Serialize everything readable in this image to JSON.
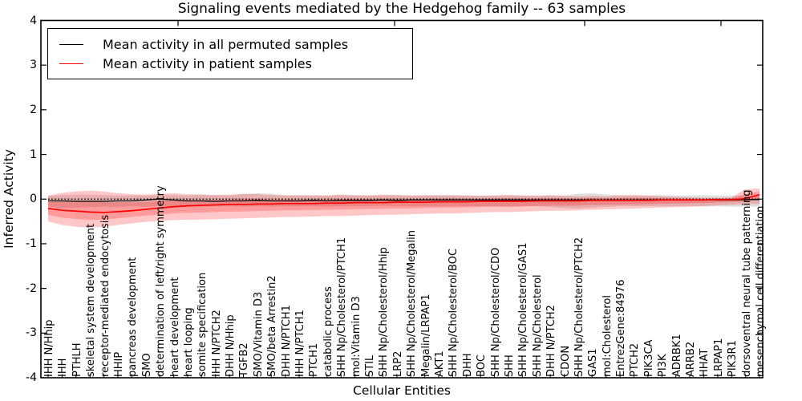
{
  "chart": {
    "title": "Signaling events mediated by the Hedgehog family -- 63 samples",
    "xlabel": "Cellular Entities",
    "ylabel": "Inferred Activity",
    "sample_count": "63 samples"
  },
  "chart_data": {
    "type": "line",
    "title": "Signaling events mediated by the Hedgehog family -- 63 samples",
    "xlabel": "Cellular Entities",
    "ylabel": "Inferred Activity",
    "ylim": [
      -4,
      4
    ],
    "yticks": [
      4,
      3,
      2,
      1,
      0,
      -1,
      -2,
      -3,
      -4
    ],
    "grid": false,
    "legend_position": "upper left",
    "reference_line": {
      "y": 0,
      "style": "dotted",
      "color": "#000000"
    },
    "colors": {
      "permuted_line": "#000000",
      "patient_line": "#ff0000",
      "permuted_band": "rgba(128,128,128,0.25)",
      "patient_band": "rgba(255,0,0,0.22)",
      "frame": "#000000"
    },
    "categories": [
      "IHH N/Hhip",
      "IHH",
      "PTHLH",
      "skeletal system development",
      "receptor-mediated endocytosis",
      "HHIP",
      "pancreas development",
      "SMO",
      "determination of left/right symmetry",
      "heart development",
      "heart looping",
      "somite specification",
      "IHH N/PTCH2",
      "DHH N/Hhip",
      "TGFB2",
      "SMO/Vitamin D3",
      "SMO/beta Arrestin2",
      "DHH N/PTCH1",
      "IHH N/PTCH1",
      "PTCH1",
      "catabolic process",
      "SHH Np/Cholesterol/PTCH1",
      "mol:Vitamin D3",
      "STIL",
      "SHH Np/Cholesterol/Hhip",
      "LRP2",
      "SHH Np/Cholesterol/Megalin",
      "Megalin/LRPAP1",
      "AKT1",
      "SHH Np/Cholesterol/BOC",
      "DHH",
      "BOC",
      "SHH Np/Cholesterol/CDO",
      "SHH",
      "SHH Np/Cholesterol/GAS1",
      "SHH Np/Cholesterol",
      "DHH N/PTCH2",
      "CDON",
      "SHH Np/Cholesterol/PTCH2",
      "GAS1",
      "mol:Cholesterol",
      "EntrezGene:84976",
      "PTCH2",
      "PIK3CA",
      "PI3K",
      "ADRBK1",
      "ARRB2",
      "HHAT",
      "LRPAP1",
      "PIK3R1",
      "dorsoventral neural tube patterning",
      "mesenchymal cell differentiation"
    ],
    "series": [
      {
        "name": "Mean activity in all permuted samples",
        "color": "#000000",
        "values": [
          -0.04,
          -0.04,
          -0.05,
          -0.05,
          -0.05,
          -0.04,
          -0.04,
          -0.02,
          0.0,
          -0.02,
          -0.04,
          -0.04,
          -0.05,
          -0.04,
          -0.04,
          -0.03,
          -0.04,
          -0.04,
          -0.04,
          -0.03,
          -0.04,
          -0.03,
          -0.03,
          -0.03,
          -0.02,
          -0.03,
          -0.02,
          -0.02,
          -0.02,
          -0.02,
          -0.02,
          -0.02,
          -0.02,
          -0.02,
          -0.02,
          -0.02,
          -0.02,
          -0.02,
          -0.02,
          -0.02,
          -0.02,
          -0.02,
          -0.02,
          -0.02,
          -0.02,
          -0.02,
          -0.02,
          -0.02,
          -0.02,
          -0.02,
          -0.01,
          -0.01
        ],
        "band_upper": [
          0.07,
          0.09,
          0.1,
          0.1,
          0.09,
          0.08,
          0.08,
          0.08,
          0.08,
          0.09,
          0.08,
          0.1,
          0.09,
          0.08,
          0.11,
          0.13,
          0.12,
          0.09,
          0.08,
          0.09,
          0.08,
          0.09,
          0.08,
          0.08,
          0.08,
          0.09,
          0.08,
          0.08,
          0.09,
          0.08,
          0.08,
          0.08,
          0.08,
          0.09,
          0.08,
          0.08,
          0.09,
          0.08,
          0.12,
          0.13,
          0.1,
          0.09,
          0.08,
          0.08,
          0.09,
          0.08,
          0.08,
          0.09,
          0.08,
          0.08,
          0.08,
          0.08
        ],
        "band_lower": [
          -0.16,
          -0.2,
          -0.19,
          -0.18,
          -0.17,
          -0.17,
          -0.16,
          -0.17,
          -0.16,
          -0.17,
          -0.18,
          -0.17,
          -0.16,
          -0.16,
          -0.17,
          -0.16,
          -0.17,
          -0.16,
          -0.16,
          -0.16,
          -0.17,
          -0.16,
          -0.16,
          -0.16,
          -0.15,
          -0.16,
          -0.16,
          -0.16,
          -0.16,
          -0.16,
          -0.16,
          -0.16,
          -0.16,
          -0.17,
          -0.16,
          -0.16,
          -0.18,
          -0.2,
          -0.21,
          -0.19,
          -0.17,
          -0.16,
          -0.16,
          -0.16,
          -0.16,
          -0.16,
          -0.16,
          -0.16,
          -0.16,
          -0.17,
          -0.17,
          -0.17
        ]
      },
      {
        "name": "Mean activity in patient samples",
        "color": "#ff0000",
        "values": [
          -0.21,
          -0.25,
          -0.27,
          -0.29,
          -0.3,
          -0.28,
          -0.26,
          -0.23,
          -0.2,
          -0.17,
          -0.15,
          -0.14,
          -0.13,
          -0.12,
          -0.12,
          -0.11,
          -0.11,
          -0.1,
          -0.1,
          -0.1,
          -0.09,
          -0.09,
          -0.08,
          -0.08,
          -0.08,
          -0.07,
          -0.07,
          -0.07,
          -0.06,
          -0.06,
          -0.06,
          -0.05,
          -0.05,
          -0.05,
          -0.05,
          -0.04,
          -0.04,
          -0.04,
          -0.04,
          -0.03,
          -0.03,
          -0.03,
          -0.03,
          -0.03,
          -0.02,
          -0.02,
          -0.02,
          -0.02,
          -0.01,
          -0.01,
          0.01,
          0.1
        ],
        "band_upper": [
          0.08,
          0.14,
          0.17,
          0.19,
          0.17,
          0.13,
          0.11,
          0.1,
          0.12,
          0.13,
          0.11,
          0.1,
          0.09,
          0.1,
          0.12,
          0.11,
          0.09,
          0.08,
          0.09,
          0.08,
          0.08,
          0.1,
          0.09,
          0.08,
          0.1,
          0.09,
          0.08,
          0.09,
          0.08,
          0.09,
          0.08,
          0.07,
          0.08,
          0.09,
          0.08,
          0.07,
          0.08,
          0.07,
          0.06,
          0.07,
          0.06,
          0.08,
          0.09,
          0.08,
          0.06,
          0.05,
          0.04,
          0.03,
          0.03,
          0.04,
          0.22,
          0.24
        ],
        "band_lower": [
          -0.5,
          -0.58,
          -0.62,
          -0.64,
          -0.62,
          -0.58,
          -0.54,
          -0.51,
          -0.49,
          -0.47,
          -0.46,
          -0.46,
          -0.45,
          -0.44,
          -0.43,
          -0.42,
          -0.41,
          -0.4,
          -0.4,
          -0.39,
          -0.38,
          -0.38,
          -0.37,
          -0.36,
          -0.35,
          -0.35,
          -0.34,
          -0.33,
          -0.32,
          -0.32,
          -0.31,
          -0.3,
          -0.29,
          -0.29,
          -0.28,
          -0.27,
          -0.26,
          -0.26,
          -0.25,
          -0.24,
          -0.23,
          -0.22,
          -0.21,
          -0.2,
          -0.19,
          -0.18,
          -0.17,
          -0.16,
          -0.14,
          -0.13,
          -0.11,
          -0.11
        ]
      }
    ]
  }
}
